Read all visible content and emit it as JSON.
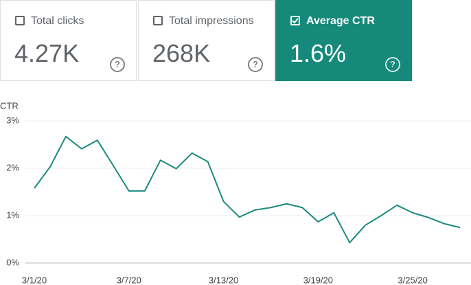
{
  "cards": [
    {
      "label": "Total clicks",
      "value": "4.27K",
      "selected": false
    },
    {
      "label": "Total impressions",
      "value": "268K",
      "selected": false
    },
    {
      "label": "Average CTR",
      "value": "1.6%",
      "selected": true
    }
  ],
  "chart_data": {
    "type": "line",
    "y_label": "CTR",
    "categories": [
      "3/1/20",
      null,
      null,
      null,
      null,
      null,
      "3/7/20",
      null,
      null,
      null,
      null,
      null,
      "3/13/20",
      null,
      null,
      null,
      null,
      null,
      "3/19/20",
      null,
      null,
      null,
      null,
      null,
      "3/25/20",
      null,
      null,
      null
    ],
    "values": [
      1.58,
      2.03,
      2.67,
      2.41,
      2.59,
      2.06,
      1.52,
      1.52,
      2.17,
      1.99,
      2.32,
      2.14,
      1.3,
      0.97,
      1.12,
      1.17,
      1.25,
      1.17,
      0.87,
      1.06,
      0.43,
      0.8,
      1.0,
      1.22,
      1.06,
      0.96,
      0.83,
      0.75
    ],
    "color": "#1a8a7c",
    "ylim": [
      0,
      3
    ],
    "yticks": [
      {
        "value": 0,
        "label": "0%"
      },
      {
        "value": 1,
        "label": "1%"
      },
      {
        "value": 2,
        "label": "2%"
      },
      {
        "value": 3,
        "label": "3%"
      }
    ],
    "grid": true
  }
}
